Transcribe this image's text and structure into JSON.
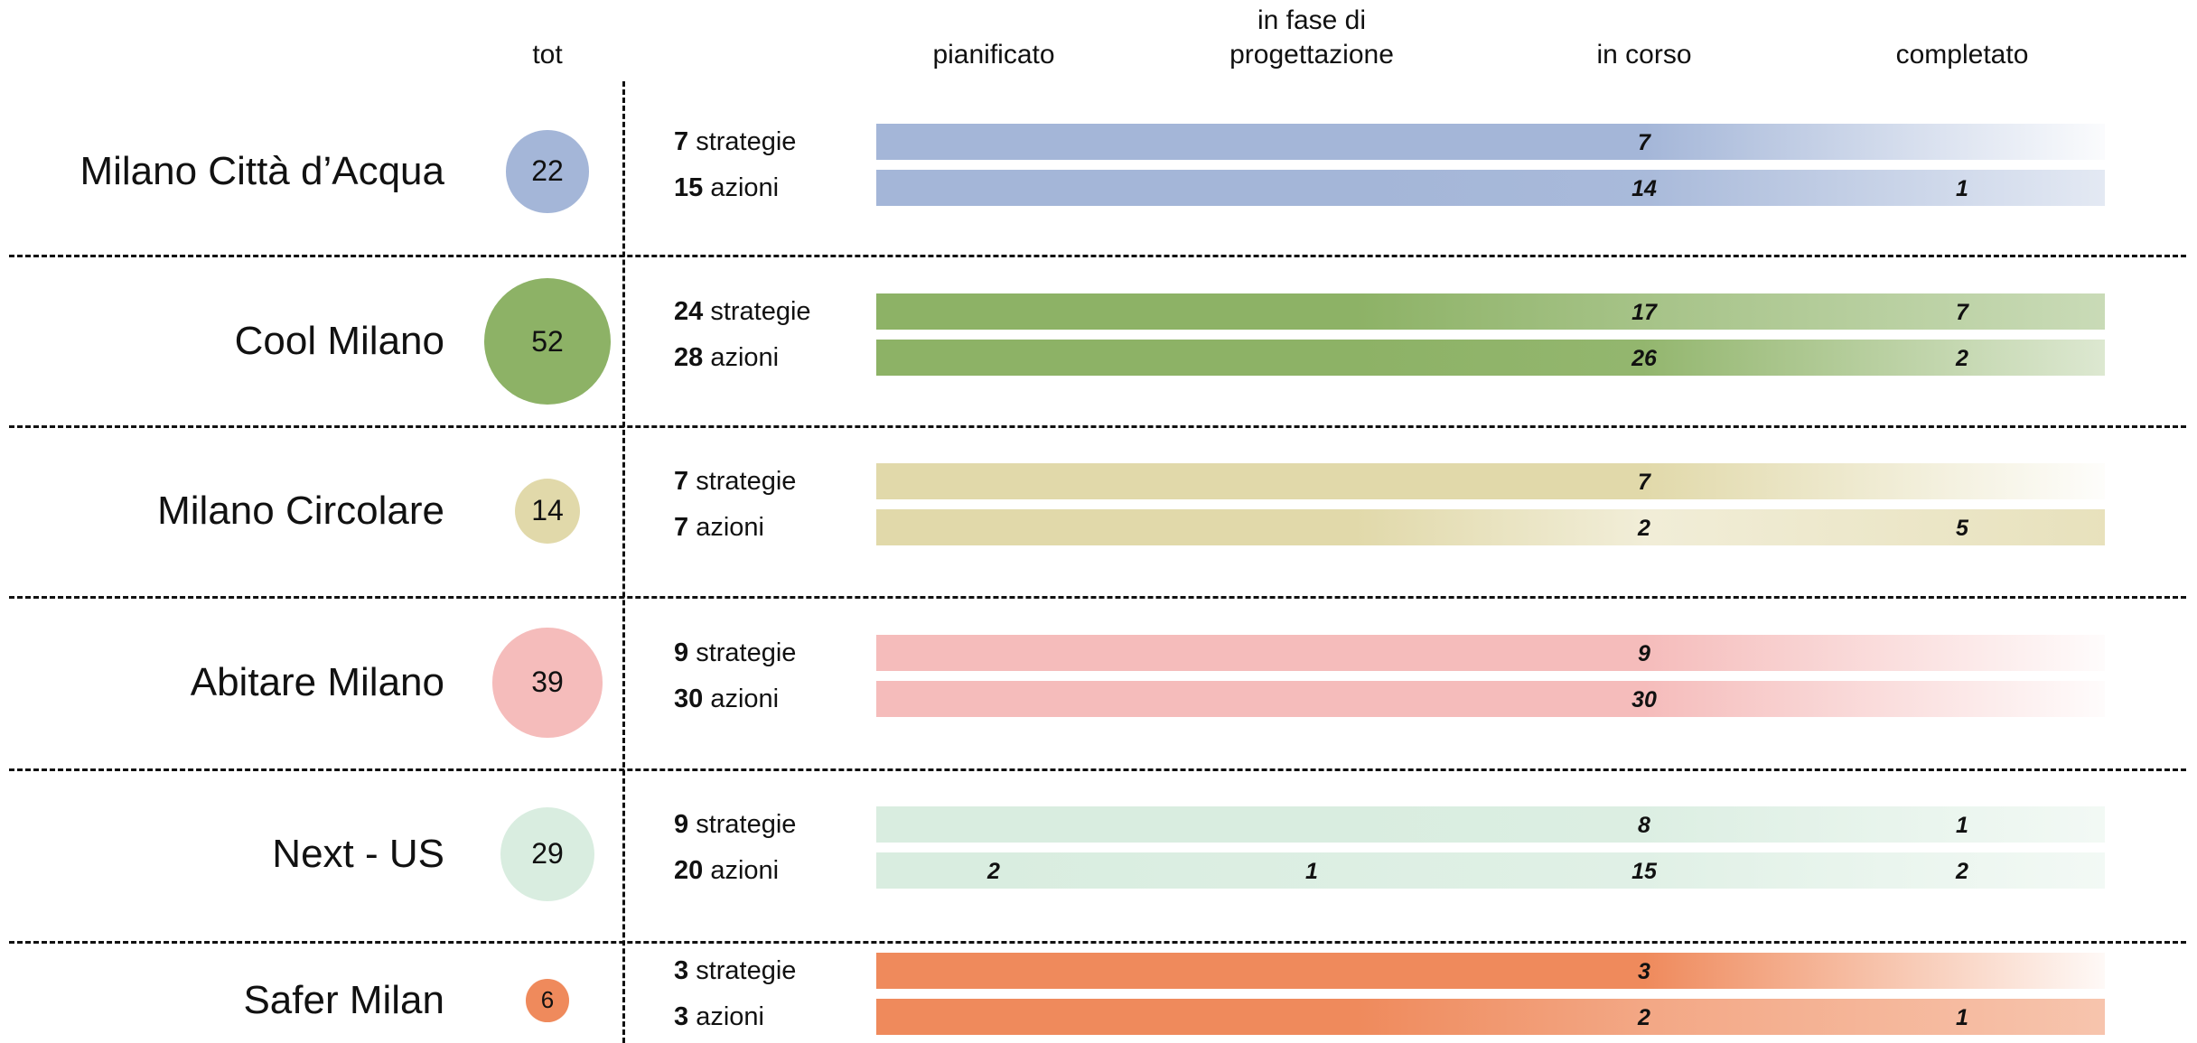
{
  "chart_data": {
    "type": "bar",
    "headers": {
      "tot": "tot",
      "stages": [
        "pianificato",
        "in fase di\nprogettazione",
        "in corso",
        "completato"
      ]
    },
    "rows": [
      {
        "name": "Milano Città d’Acqua",
        "total": 22,
        "color": "#a4b6d8",
        "strategie": {
          "count": "7",
          "label": "strategie",
          "values": [
            null,
            null,
            7,
            null
          ]
        },
        "azioni": {
          "count": "15",
          "label": "azioni",
          "values": [
            null,
            null,
            14,
            1
          ]
        }
      },
      {
        "name": "Cool Milano",
        "total": 52,
        "color": "#8db266",
        "strategie": {
          "count": "24",
          "label": "strategie",
          "values": [
            null,
            null,
            17,
            7
          ]
        },
        "azioni": {
          "count": "28",
          "label": "azioni",
          "values": [
            null,
            null,
            26,
            2
          ]
        }
      },
      {
        "name": "Milano Circolare",
        "total": 14,
        "color": "#e1d9aa",
        "strategie": {
          "count": "7",
          "label": "strategie",
          "values": [
            null,
            null,
            7,
            null
          ]
        },
        "azioni": {
          "count": "7",
          "label": "azioni",
          "values": [
            null,
            null,
            2,
            5
          ]
        }
      },
      {
        "name": "Abitare Milano",
        "total": 39,
        "color": "#f5bcbb",
        "strategie": {
          "count": "9",
          "label": "strategie",
          "values": [
            null,
            null,
            9,
            null
          ]
        },
        "azioni": {
          "count": "30",
          "label": "azioni",
          "values": [
            null,
            null,
            30,
            null
          ]
        }
      },
      {
        "name": "Next - US",
        "total": 29,
        "color": "#d9ede0",
        "strategie": {
          "count": "9",
          "label": "strategie",
          "values": [
            null,
            null,
            8,
            1
          ]
        },
        "azioni": {
          "count": "20",
          "label": "azioni",
          "values": [
            2,
            1,
            15,
            2
          ]
        }
      },
      {
        "name": "Safer Milan",
        "total": 6,
        "color": "#ef8a5c",
        "strategie": {
          "count": "3",
          "label": "strategie",
          "values": [
            null,
            null,
            3,
            null
          ]
        },
        "azioni": {
          "count": "3",
          "label": "azioni",
          "values": [
            null,
            null,
            2,
            1
          ]
        }
      }
    ]
  }
}
